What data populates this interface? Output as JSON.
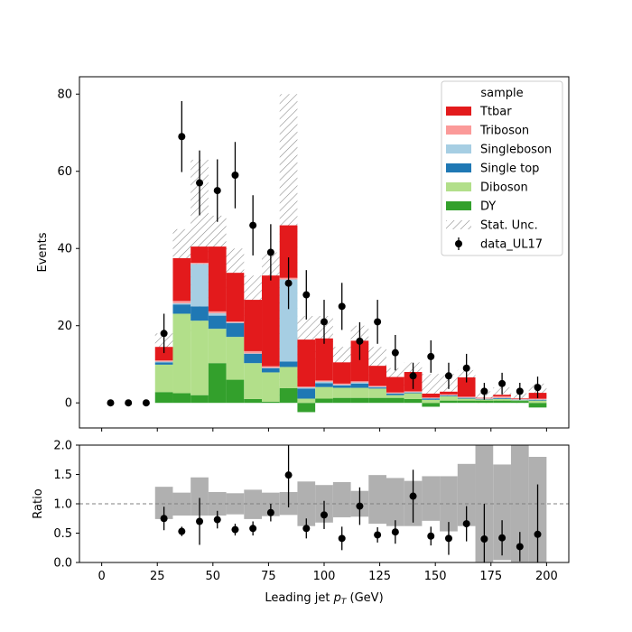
{
  "chart_data": [
    {
      "type": "bar",
      "stacked": true,
      "ylabel": "Events",
      "ylim": [
        -6.5,
        84.5
      ],
      "xlim": [
        -10,
        210
      ],
      "yticks": [
        0,
        20,
        40,
        60,
        80
      ],
      "bin_edges": [
        24,
        32,
        40,
        48,
        56,
        64,
        72,
        80,
        88,
        96,
        104,
        112,
        120,
        128,
        136,
        144,
        152,
        160,
        168,
        176,
        184,
        192,
        200
      ],
      "series": [
        {
          "name": "DY",
          "color": "#33a02c",
          "values": [
            2.8,
            2.5,
            2.0,
            10.3,
            6.0,
            1.0,
            0.3,
            3.8,
            -2.4,
            1.1,
            1.3,
            1.3,
            1.3,
            1.3,
            1.0,
            -1.0,
            0.6,
            0.6,
            0.6,
            0.6,
            0.5,
            -1.2
          ]
        },
        {
          "name": "Diboson",
          "color": "#b2df8a",
          "values": [
            7.1,
            20.6,
            19.3,
            8.9,
            11.1,
            9.3,
            7.6,
            5.5,
            1.1,
            3.0,
            2.6,
            2.6,
            2.4,
            0.7,
            1.5,
            0.8,
            1.1,
            0.5,
            0.3,
            0.4,
            0.2,
            0.6
          ]
        },
        {
          "name": "Single top",
          "color": "#1f78b4",
          "values": [
            0.6,
            2.4,
            3.7,
            3.4,
            3.6,
            2.4,
            1.1,
            1.4,
            2.6,
            1.0,
            0.6,
            1.1,
            0.3,
            0.4,
            0.2,
            0.3,
            0.2,
            0.2,
            0.1,
            0.2,
            0.1,
            0.2
          ]
        },
        {
          "name": "Singleboson",
          "color": "#a6cee3",
          "values": [
            0.2,
            0.3,
            11.0,
            0.6,
            0.1,
            0.1,
            0.1,
            21.3,
            0.3,
            0.4,
            0.2,
            0.3,
            0.2,
            0.1,
            0.1,
            0.1,
            0.1,
            0.1,
            0.1,
            0.1,
            0.1,
            0.1
          ]
        },
        {
          "name": "Triboson",
          "color": "#fb9a99",
          "values": [
            0.3,
            0.6,
            0.3,
            0.5,
            0.3,
            0.6,
            0.4,
            0.4,
            0.2,
            0.3,
            0.3,
            0.3,
            0.2,
            0.2,
            0.2,
            0.2,
            0.2,
            0.2,
            0.1,
            0.4,
            0.2,
            0.2
          ]
        },
        {
          "name": "Ttbar",
          "color": "#e31a1c",
          "values": [
            3.5,
            11.1,
            4.2,
            16.8,
            12.6,
            13.3,
            23.5,
            13.6,
            12.2,
            10.9,
            5.5,
            10.5,
            5.2,
            4.0,
            5.0,
            1.0,
            0.7,
            5.0,
            0.1,
            0.4,
            0.1,
            1.5
          ]
        }
      ],
      "stat_unc": {
        "name": "Stat. Unc.",
        "low": [
          13.5,
          29.5,
          18.5,
          32.5,
          28.0,
          16.5,
          23.0,
          0.5,
          10.0,
          11.0,
          8.0,
          9.5,
          6.0,
          3.0,
          4.0,
          0.5,
          1.0,
          2.0,
          0.0,
          0.2,
          0.0,
          0.0
        ],
        "high": [
          18.0,
          45.0,
          63.0,
          48.5,
          40.0,
          33.0,
          39.0,
          80.0,
          22.5,
          22.5,
          14.5,
          20.0,
          14.5,
          9.0,
          10.5,
          7.5,
          7.5,
          8.5,
          3.0,
          4.0,
          2.5,
          5.0
        ]
      },
      "data": {
        "name": "data_UL17",
        "x": [
          4,
          12,
          20,
          28,
          36,
          44,
          52,
          60,
          68,
          76,
          84,
          92,
          100,
          108,
          116,
          124,
          132,
          140,
          148,
          156,
          164,
          172,
          180,
          188,
          196
        ],
        "y": [
          0,
          0,
          0,
          18,
          69,
          57,
          55,
          59,
          46,
          39,
          31,
          28,
          21,
          25,
          16,
          21,
          13,
          7,
          12,
          7,
          9,
          3,
          5,
          3,
          4
        ],
        "yerr": [
          0,
          0,
          0,
          5.1,
          9.2,
          8.4,
          8.1,
          8.6,
          7.8,
          7.3,
          6.7,
          6.4,
          5.7,
          6.1,
          4.9,
          5.7,
          4.6,
          3.4,
          4.2,
          3.4,
          3.7,
          2.2,
          2.8,
          2.2,
          2.8
        ]
      },
      "legend": {
        "title": "sample",
        "placement": "top-right",
        "entries": [
          "Ttbar",
          "Triboson",
          "Singleboson",
          "Single top",
          "Diboson",
          "DY",
          "Stat. Unc.",
          "data_UL17"
        ]
      }
    },
    {
      "type": "scatter",
      "xlabel": "Leading jet  $p_T$ (GeV)",
      "ylabel": "Ratio",
      "ylim": [
        0.0,
        2.0
      ],
      "xlim": [
        -10,
        210
      ],
      "xticks": [
        0,
        25,
        50,
        75,
        100,
        125,
        150,
        175,
        200
      ],
      "yticks": [
        "0.0",
        "0.5",
        "1.0",
        "1.5",
        "2.0"
      ],
      "reference_line": 1.0,
      "unc_band": {
        "bin_edges": [
          24,
          32,
          40,
          48,
          56,
          64,
          72,
          80,
          88,
          96,
          104,
          112,
          120,
          128,
          136,
          144,
          152,
          160,
          168,
          176,
          184,
          192,
          200
        ],
        "low": [
          0.74,
          0.8,
          0.8,
          0.8,
          0.82,
          0.74,
          0.79,
          0.81,
          0.62,
          0.68,
          0.77,
          0.78,
          0.66,
          0.62,
          0.62,
          0.71,
          0.53,
          0.62,
          0.01,
          0.04,
          0.01,
          0.01
        ],
        "high": [
          1.29,
          1.19,
          1.45,
          1.2,
          1.18,
          1.24,
          1.19,
          1.2,
          1.38,
          1.32,
          1.37,
          1.22,
          1.49,
          1.44,
          1.39,
          1.47,
          1.47,
          1.68,
          2.0,
          1.67,
          2.0,
          1.8
        ]
      },
      "points": {
        "x": [
          28,
          36,
          44,
          52,
          60,
          68,
          76,
          84,
          92,
          100,
          108,
          116,
          124,
          132,
          140,
          148,
          156,
          164,
          172,
          180,
          188,
          196
        ],
        "y": [
          0.75,
          0.53,
          0.7,
          0.73,
          0.56,
          0.58,
          0.85,
          1.49,
          0.58,
          0.81,
          0.41,
          0.96,
          0.47,
          0.52,
          1.13,
          0.45,
          0.41,
          0.66,
          0.4,
          0.42,
          0.27,
          0.48
        ],
        "yerr": [
          0.2,
          0.08,
          0.4,
          0.15,
          0.1,
          0.12,
          0.15,
          0.55,
          0.17,
          0.24,
          0.2,
          0.32,
          0.13,
          0.2,
          0.45,
          0.16,
          0.28,
          0.3,
          0.6,
          0.3,
          0.25,
          0.85
        ]
      }
    }
  ]
}
